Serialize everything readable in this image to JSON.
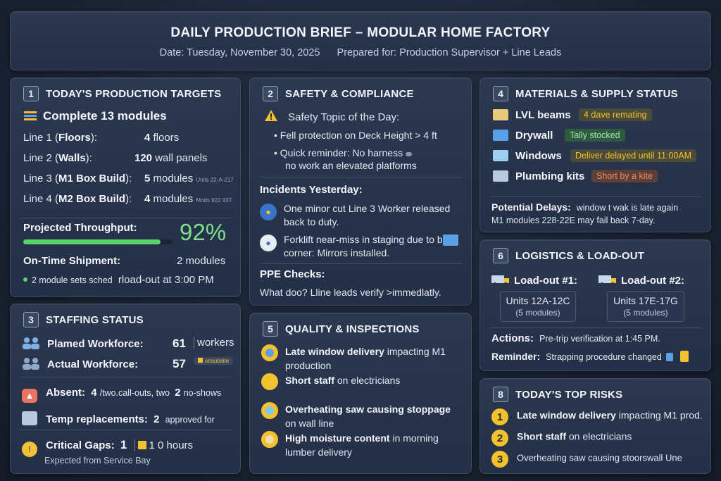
{
  "header": {
    "title": "DAILY PRODUCTION BRIEF – MODULAR HOME FACTORY",
    "date": "Date: Tuesday, November 30, 2025",
    "prepared": "Prepared for: Production Supervisor + Line Leads"
  },
  "targets": {
    "num": "1",
    "title": "TODAY'S PRODUCTION TARGETS",
    "headline": "Complete 13 modules",
    "lines": [
      {
        "label_a": "Line 1 (",
        "label_b": "Floors",
        "label_c": "):",
        "value": "4",
        "unit": "floors",
        "note": ""
      },
      {
        "label_a": "Line 2 (",
        "label_b": "Walls",
        "label_c": "):",
        "value": "120",
        "unit": "wall panels",
        "note": ""
      },
      {
        "label_a": "Line 3 (",
        "label_b": "M1 Box Build",
        "label_c": "):",
        "value": "5",
        "unit": "modules",
        "note": "Units 22-A-217"
      },
      {
        "label_a": "Line 4 (",
        "label_b": "M2 Box Build",
        "label_c": "):",
        "value": "4",
        "unit": "modules",
        "note": "Mods 922 93T"
      }
    ],
    "throughput_label": "Projected Throughput:",
    "throughput_value": "92%",
    "throughput_fraction": 0.92,
    "ontime_label": "On-Time Shipment:",
    "ontime_value": "2 modules",
    "sched_a": "2 module sets sched",
    "sched_b": "rload-out at 3:00 PM"
  },
  "safety": {
    "num": "2",
    "title": "SAFETY & COMPLIANCE",
    "topic_label": "Safety Topic of the Day:",
    "bullets": [
      "Fell protection on Deck Height > 4 ft",
      "Quick reminder: No harness",
      "no work an elevated platforms"
    ],
    "incidents_label": "Incidents Yesterday:",
    "incident1": "One minor cut Line 3  Worker released back to duty.",
    "incident2": "Forklift near-miss in staging due to blind corner: Mirrors installed.",
    "ppe_label": "PPE Checks:",
    "ppe_text": "What doo? Lline leads verify >immedlatly."
  },
  "staffing": {
    "num": "3",
    "title": "STAFFING STATUS",
    "planned_label": "Plamed Workforce:",
    "planned_value": "61",
    "planned_unit": "workers",
    "actual_label": "Actual Workforce:",
    "actual_value": "57",
    "actual_tag": "onsubsite",
    "absent_label": "Absent:",
    "absent_a": "4",
    "absent_b": "/two.call-outs, two",
    "absent_c": "2",
    "absent_d": "no-shows",
    "temp_label": "Temp replacements:",
    "temp_value": "2",
    "temp_unit": "approved for",
    "gaps_label": "Critical Gaps:",
    "gaps_value": "1",
    "gaps_hours": "1 0 hours",
    "gaps_note": "Expected from Service Bay"
  },
  "materials": {
    "num": "4",
    "title": "MATERIALS & SUPPLY STATUS",
    "items": [
      {
        "name": "LVL beams",
        "status": "4 dave remating",
        "kind": "warn"
      },
      {
        "name": "Drywall",
        "status": "Tally stocked",
        "kind": "ok"
      },
      {
        "name": "Windows",
        "status": "Deliver delayed until 11:00AM",
        "kind": "warn"
      },
      {
        "name": "Plumbing kits",
        "status": "Short by a kite",
        "kind": "bad"
      }
    ],
    "delays_label": "Potential Delays:",
    "delays_a": "window t wak is late again",
    "delays_b": "M1 modules 228-22E may fail back 7-day."
  },
  "quality": {
    "num": "5",
    "title": "QUALITY & INSPECTIONS",
    "items": [
      {
        "a": "Late window delivery",
        "b": " impacting M1",
        "c": "production"
      },
      {
        "a": "Short staff",
        "b": " on electricians",
        "c": ""
      },
      {
        "a": "Overheating saw causing stoppage",
        "b": "",
        "c": "on wall line"
      },
      {
        "a": "High moisture content",
        "b": " in morning",
        "c": "lumber delivery"
      }
    ]
  },
  "logistics": {
    "num": "6",
    "title": "LOGISTICS & LOAD-OUT",
    "load1_label": "Load-out #1:",
    "load1_units": "Units 12A-12C",
    "load1_count": "(5 modules)",
    "load2_label": "Load-out #2:",
    "load2_units": "Units 17E-17G",
    "load2_count": "(5 modules)",
    "actions_label": "Actions:",
    "actions_text": "Pre-trip verification at 1:45 PM.",
    "reminder_label": "Reminder:",
    "reminder_text": "Strapping procedure changed"
  },
  "risks": {
    "num": "8",
    "title": "TODAY'S TOP RISKS",
    "items": [
      {
        "n": "1",
        "a": "Late window delivery",
        "b": " impacting M1 prod."
      },
      {
        "n": "2",
        "a": "Short staff",
        "b": " on electricians"
      },
      {
        "n": "3",
        "a": "",
        "b": "Overheating saw causing stoorswall Une"
      }
    ]
  },
  "colors": {
    "accent_green": "#7fe08a",
    "warn_yellow": "#f2c12e",
    "bad_orange": "#f08a55"
  }
}
